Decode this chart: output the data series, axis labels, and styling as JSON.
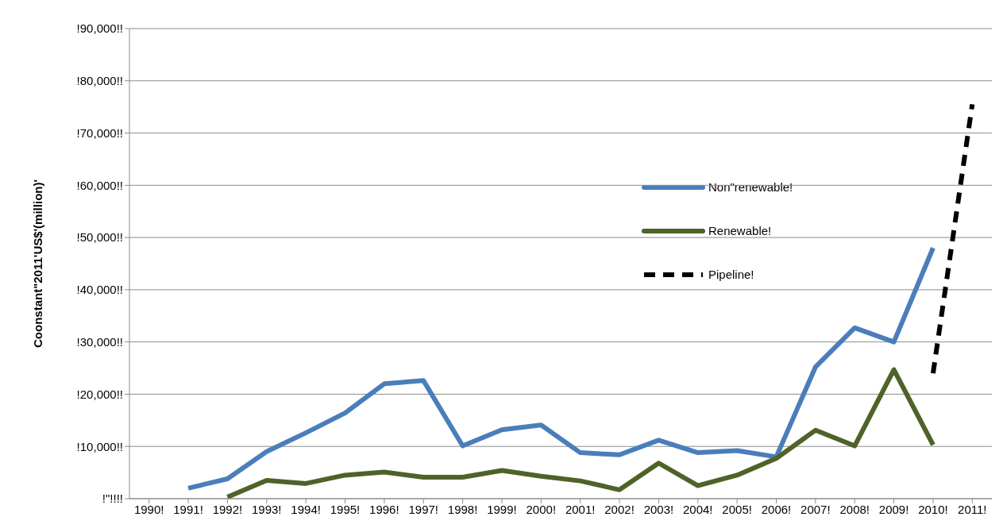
{
  "chart_data": {
    "type": "line",
    "ylabel": "Coonstant\"2011'US$'(million)'",
    "categories": [
      "1990!",
      "1991!",
      "1992!",
      "1993!",
      "1994!",
      "1995!",
      "1996!",
      "1997!",
      "1998!",
      "1999!",
      "2000!",
      "2001!",
      "2002!",
      "2003!",
      "2004!",
      "2005!",
      "2006!",
      "2007!",
      "2008!",
      "2009!",
      "2010!",
      "2011!"
    ],
    "series": [
      {
        "name": "Non\"renewable!",
        "color": "#4a7ebb",
        "values": [
          null,
          2000,
          3800,
          9000,
          12600,
          16400,
          22000,
          22600,
          10100,
          13200,
          14100,
          8800,
          8400,
          11200,
          8800,
          9200,
          8000,
          25200,
          32700,
          30000,
          48000,
          null
        ]
      },
      {
        "name": "Renewable!",
        "color": "#4f6228",
        "values": [
          null,
          null,
          300,
          3500,
          2900,
          4500,
          5100,
          4100,
          4100,
          5400,
          4300,
          3400,
          1700,
          6800,
          2500,
          4500,
          7700,
          13100,
          10100,
          24700,
          10300,
          null
        ]
      },
      {
        "name": "Pipeline!",
        "color": "#000000",
        "line_style": "dashed",
        "values": [
          null,
          null,
          null,
          null,
          null,
          null,
          null,
          null,
          null,
          null,
          null,
          null,
          null,
          null,
          null,
          null,
          null,
          null,
          null,
          null,
          24000,
          75500
        ]
      }
    ],
    "ylim": [
      0,
      90000
    ],
    "yticks": [
      {
        "value": 0,
        "label": "!\"!!!!"
      },
      {
        "value": 10000,
        "label": "!10,000!!"
      },
      {
        "value": 20000,
        "label": "!20,000!!"
      },
      {
        "value": 30000,
        "label": "!30,000!!"
      },
      {
        "value": 40000,
        "label": "!40,000!!"
      },
      {
        "value": 50000,
        "label": "!50,000!!"
      },
      {
        "value": 60000,
        "label": "!60,000!!"
      },
      {
        "value": 70000,
        "label": "!70,000!!"
      },
      {
        "value": 80000,
        "label": "!80,000!!"
      },
      {
        "value": 90000,
        "label": "!90,000!!"
      }
    ],
    "grid": "y",
    "legend": "right",
    "marker": "none"
  }
}
